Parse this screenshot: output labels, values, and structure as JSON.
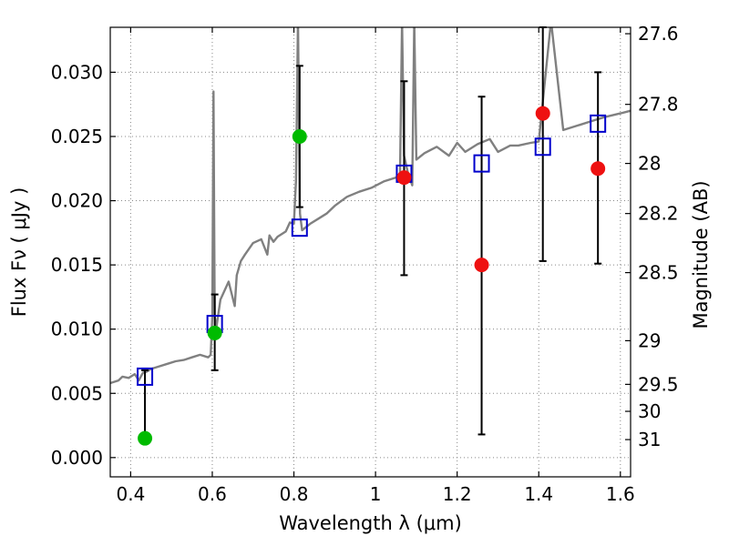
{
  "chart_data": {
    "type": "scatter",
    "xlabel": "Wavelength  λ (μm)",
    "ylabel_left": "Flux  Fν  ( μJy )",
    "ylabel_right": "Magnitude (AB)",
    "xlim": [
      0.35,
      1.625
    ],
    "ylim": [
      -0.0015,
      0.0335
    ],
    "grid": true,
    "x_ticks": [
      0.4,
      0.6,
      0.8,
      1.0,
      1.2,
      1.4,
      1.6
    ],
    "x_tick_labels": [
      "0.4",
      "0.6",
      "0.8",
      "1",
      "1.2",
      "1.4",
      "1.6"
    ],
    "y_ticks": [
      0.0,
      0.005,
      0.01,
      0.015,
      0.02,
      0.025,
      0.03
    ],
    "y_tick_labels": [
      "0.000",
      "0.005",
      "0.010",
      "0.015",
      "0.020",
      "0.025",
      "0.030"
    ],
    "right_axis_ticks": [
      {
        "label": "27.6",
        "flux": 0.033
      },
      {
        "label": "27.8",
        "flux": 0.0275
      },
      {
        "label": "28",
        "flux": 0.0229
      },
      {
        "label": "28.2",
        "flux": 0.019
      },
      {
        "label": "28.5",
        "flux": 0.0144
      },
      {
        "label": "29",
        "flux": 0.0091
      },
      {
        "label": "29.5",
        "flux": 0.0057
      },
      {
        "label": "30",
        "flux": 0.0036
      },
      {
        "label": "31",
        "flux": 0.0014
      }
    ],
    "colors": {
      "model": "#808080",
      "model_photometry": "#0000cc",
      "detection_green": "#00bb00",
      "detection_red": "#ee1111",
      "error_bar": "#000000",
      "grid": "#888888"
    },
    "model_photometry": [
      {
        "x": 0.435,
        "y": 0.0063
      },
      {
        "x": 0.606,
        "y": 0.0104
      },
      {
        "x": 0.814,
        "y": 0.0179
      },
      {
        "x": 1.07,
        "y": 0.0221
      },
      {
        "x": 1.26,
        "y": 0.0229
      },
      {
        "x": 1.41,
        "y": 0.0242
      },
      {
        "x": 1.545,
        "y": 0.026
      }
    ],
    "observed": [
      {
        "x": 0.435,
        "y": 0.0015,
        "yerr_low": 0.0015,
        "yerr_high": 0.0068,
        "color": "green"
      },
      {
        "x": 0.606,
        "y": 0.0097,
        "yerr_low": 0.0068,
        "yerr_high": 0.0127,
        "color": "green"
      },
      {
        "x": 0.814,
        "y": 0.025,
        "yerr_low": 0.0195,
        "yerr_high": 0.0305,
        "color": "green"
      },
      {
        "x": 1.07,
        "y": 0.0218,
        "yerr_low": 0.0142,
        "yerr_high": 0.0293,
        "color": "red"
      },
      {
        "x": 1.26,
        "y": 0.015,
        "yerr_low": 0.0018,
        "yerr_high": 0.0281,
        "color": "red"
      },
      {
        "x": 1.41,
        "y": 0.0268,
        "yerr_low": 0.0153,
        "yerr_high": 0.0335,
        "color": "red"
      },
      {
        "x": 1.545,
        "y": 0.0225,
        "yerr_low": 0.0151,
        "yerr_high": 0.03,
        "color": "red"
      }
    ],
    "model_spectrum": {
      "x": [
        0.35,
        0.37,
        0.38,
        0.395,
        0.41,
        0.42,
        0.43,
        0.44,
        0.45,
        0.47,
        0.49,
        0.51,
        0.53,
        0.55,
        0.57,
        0.59,
        0.596,
        0.6,
        0.603,
        0.606,
        0.61,
        0.62,
        0.64,
        0.655,
        0.66,
        0.67,
        0.68,
        0.7,
        0.72,
        0.735,
        0.74,
        0.75,
        0.76,
        0.78,
        0.79,
        0.8,
        0.805,
        0.81,
        0.815,
        0.82,
        0.84,
        0.86,
        0.88,
        0.9,
        0.93,
        0.96,
        0.99,
        1.02,
        1.05,
        1.06,
        1.065,
        1.07,
        1.08,
        1.09,
        1.095,
        1.1,
        1.12,
        1.15,
        1.18,
        1.2,
        1.22,
        1.25,
        1.28,
        1.3,
        1.33,
        1.35,
        1.38,
        1.4,
        1.43,
        1.46,
        1.5,
        1.53,
        1.56,
        1.6,
        1.625
      ],
      "y": [
        0.0058,
        0.006,
        0.0063,
        0.0062,
        0.0065,
        0.006,
        0.0066,
        0.0067,
        0.0069,
        0.0071,
        0.0073,
        0.0075,
        0.0076,
        0.0078,
        0.008,
        0.0078,
        0.008,
        0.011,
        0.0285,
        0.011,
        0.0101,
        0.0123,
        0.0137,
        0.0118,
        0.0142,
        0.0153,
        0.0158,
        0.0167,
        0.017,
        0.0158,
        0.0173,
        0.0168,
        0.0172,
        0.0176,
        0.0183,
        0.0182,
        0.0215,
        0.034,
        0.019,
        0.0177,
        0.0182,
        0.0186,
        0.019,
        0.0196,
        0.0203,
        0.0207,
        0.021,
        0.0215,
        0.0218,
        0.0221,
        0.034,
        0.0235,
        0.0221,
        0.0212,
        0.034,
        0.0232,
        0.0237,
        0.0242,
        0.0235,
        0.0245,
        0.0238,
        0.0244,
        0.0248,
        0.0238,
        0.0243,
        0.0243,
        0.0245,
        0.0246,
        0.034,
        0.0255,
        0.0259,
        0.0262,
        0.0265,
        0.0268,
        0.027
      ]
    }
  }
}
